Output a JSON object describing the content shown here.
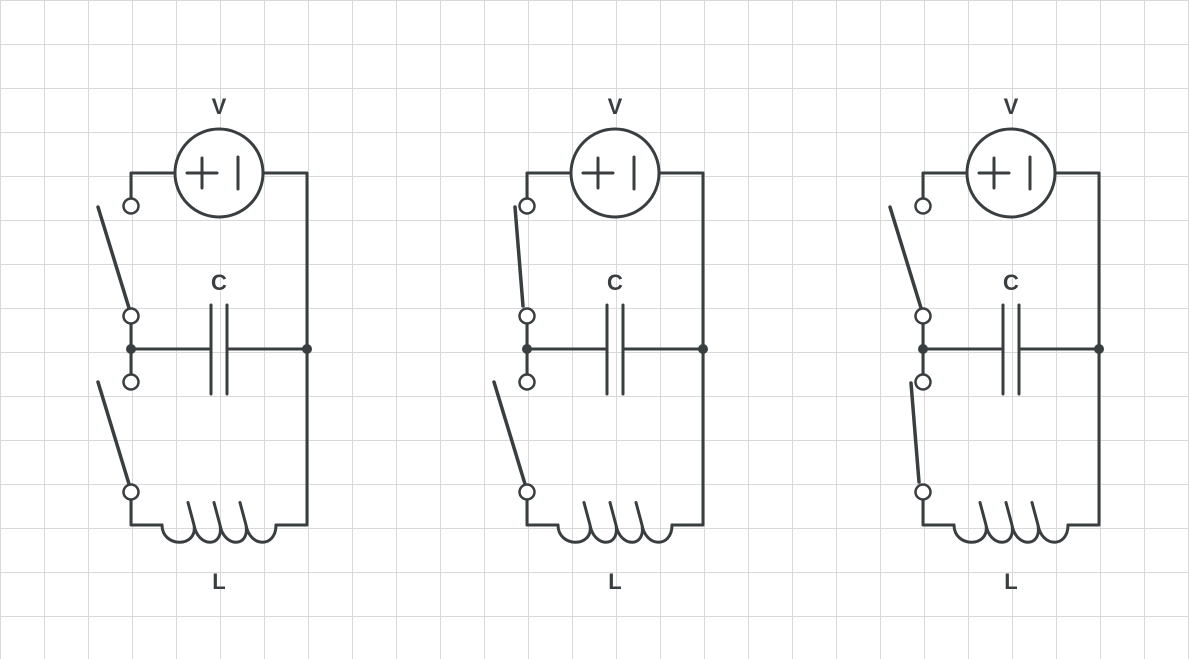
{
  "colors": {
    "stroke": "#393e41",
    "grid": "#d9d9d9",
    "background": "#ffffff"
  },
  "circuits": [
    {
      "voltage_label": "V",
      "capacitor_label": "C",
      "inductor_label": "L",
      "top_switch": "open",
      "bottom_switch": "open"
    },
    {
      "voltage_label": "V",
      "capacitor_label": "C",
      "inductor_label": "L",
      "top_switch": "closed",
      "bottom_switch": "open"
    },
    {
      "voltage_label": "V",
      "capacitor_label": "C",
      "inductor_label": "L",
      "top_switch": "open",
      "bottom_switch": "closed"
    }
  ]
}
